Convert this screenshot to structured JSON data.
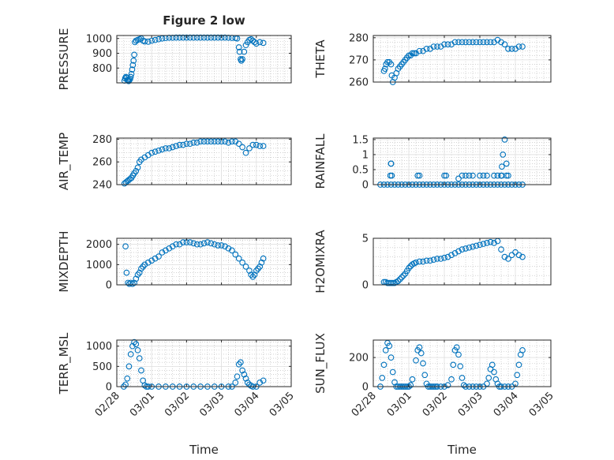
{
  "figure": {
    "title": "Figure 2 low"
  },
  "colors": {
    "marker": "#0072BD",
    "axis": "#262626",
    "grid": "#b8b8b8"
  },
  "x_axis": {
    "label": "Time",
    "ticks": [
      0,
      1,
      2,
      3,
      4,
      5
    ],
    "tick_labels": [
      "02/28",
      "03/01",
      "03/02",
      "03/03",
      "03/04",
      "03/05"
    ],
    "minor_ticks": 4
  },
  "chart_data": [
    {
      "type": "scatter",
      "title": "Figure 2 low",
      "ylabel": "PRESSURE",
      "ylim": [
        700,
        1020
      ],
      "yticks": [
        800,
        900,
        1000
      ],
      "yminor": 4,
      "grid": "on",
      "marker": "circle",
      "x": [
        0.22,
        0.24,
        0.26,
        0.28,
        0.3,
        0.32,
        0.34,
        0.36,
        0.38,
        0.4,
        0.42,
        0.44,
        0.46,
        0.48,
        0.5,
        0.52,
        0.55,
        0.6,
        0.65,
        0.7,
        0.75,
        0.8,
        0.9,
        1.0,
        1.1,
        1.2,
        1.3,
        1.4,
        1.5,
        1.6,
        1.7,
        1.8,
        1.9,
        2.0,
        2.1,
        2.2,
        2.3,
        2.4,
        2.5,
        2.6,
        2.7,
        2.8,
        2.9,
        3.0,
        3.1,
        3.2,
        3.3,
        3.4,
        3.45,
        3.5,
        3.52,
        3.55,
        3.57,
        3.6,
        3.65,
        3.7,
        3.75,
        3.8,
        3.85,
        3.9,
        3.95,
        4.0,
        4.1,
        4.2
      ],
      "y": [
        715,
        730,
        740,
        735,
        720,
        715,
        712,
        718,
        725,
        740,
        760,
        790,
        820,
        850,
        890,
        975,
        985,
        990,
        995,
        1000,
        985,
        980,
        978,
        985,
        990,
        995,
        1000,
        1003,
        1005,
        1005,
        1006,
        1006,
        1006,
        1006,
        1006,
        1006,
        1006,
        1006,
        1006,
        1006,
        1006,
        1006,
        1006,
        1006,
        1006,
        1005,
        1004,
        1003,
        1000,
        940,
        910,
        860,
        850,
        860,
        910,
        955,
        975,
        990,
        995,
        985,
        975,
        965,
        975,
        970
      ]
    },
    {
      "type": "scatter",
      "ylabel": "THETA",
      "ylim": [
        260,
        281
      ],
      "yticks": [
        260,
        270,
        280
      ],
      "yminor": 4,
      "grid": "on",
      "marker": "circle",
      "x": [
        0.3,
        0.33,
        0.36,
        0.4,
        0.45,
        0.5,
        0.52,
        0.55,
        0.6,
        0.65,
        0.7,
        0.75,
        0.8,
        0.85,
        0.9,
        0.95,
        1.0,
        1.05,
        1.1,
        1.15,
        1.2,
        1.3,
        1.4,
        1.5,
        1.6,
        1.7,
        1.8,
        1.9,
        2.0,
        2.1,
        2.2,
        2.3,
        2.4,
        2.5,
        2.6,
        2.7,
        2.8,
        2.9,
        3.0,
        3.1,
        3.2,
        3.3,
        3.4,
        3.5,
        3.6,
        3.7,
        3.8,
        3.9,
        4.0,
        4.1,
        4.2
      ],
      "y": [
        265,
        266,
        268,
        269,
        269,
        268,
        263,
        260,
        262,
        264,
        266,
        267,
        268,
        269,
        270,
        271,
        272,
        272,
        273,
        273,
        273,
        274,
        274,
        275,
        275,
        276,
        276,
        276,
        277,
        277,
        277,
        278,
        278,
        278,
        278,
        278,
        278,
        278,
        278,
        278,
        278,
        278,
        278,
        279,
        278,
        277,
        275,
        275,
        275,
        276,
        276
      ]
    },
    {
      "type": "scatter",
      "ylabel": "AIR_TEMP",
      "ylim": [
        240,
        281
      ],
      "yticks": [
        240,
        260,
        280
      ],
      "yminor": 4,
      "grid": "on",
      "marker": "circle",
      "x": [
        0.22,
        0.26,
        0.3,
        0.34,
        0.38,
        0.42,
        0.46,
        0.5,
        0.55,
        0.6,
        0.65,
        0.7,
        0.8,
        0.9,
        1.0,
        1.1,
        1.2,
        1.3,
        1.4,
        1.5,
        1.6,
        1.7,
        1.8,
        1.9,
        2.0,
        2.1,
        2.2,
        2.3,
        2.4,
        2.5,
        2.6,
        2.7,
        2.8,
        2.9,
        3.0,
        3.1,
        3.2,
        3.3,
        3.4,
        3.5,
        3.6,
        3.7,
        3.8,
        3.9,
        4.0,
        4.1,
        4.2
      ],
      "y": [
        241,
        242,
        243,
        244,
        245,
        246,
        248,
        250,
        252,
        255,
        260,
        262,
        264,
        266,
        268,
        269,
        270,
        271,
        272,
        272,
        273,
        274,
        275,
        275,
        276,
        276,
        277,
        277,
        278,
        278,
        278,
        278,
        278,
        278,
        278,
        278,
        277,
        278,
        278,
        276,
        273,
        268,
        272,
        275,
        275,
        274,
        274
      ]
    },
    {
      "type": "scatter",
      "ylabel": "RAINFALL",
      "ylim": [
        0,
        1.55
      ],
      "yticks": [
        0,
        0.5,
        1,
        1.5
      ],
      "yminor": 4,
      "grid": "on",
      "marker": "circle",
      "x": [
        0.2,
        0.3,
        0.4,
        0.5,
        0.6,
        0.7,
        0.8,
        0.9,
        1.0,
        1.1,
        1.2,
        1.3,
        1.4,
        1.5,
        1.6,
        1.7,
        1.8,
        1.9,
        2.0,
        2.1,
        2.2,
        2.3,
        2.4,
        2.5,
        2.6,
        2.7,
        2.8,
        2.9,
        3.0,
        3.1,
        3.2,
        3.3,
        3.4,
        3.5,
        3.6,
        3.7,
        3.8,
        3.9,
        4.0,
        4.1,
        4.2,
        0.48,
        0.52,
        0.5,
        0.5,
        1.25,
        1.3,
        2.0,
        2.05,
        2.4,
        2.5,
        2.6,
        2.7,
        2.8,
        3.0,
        3.1,
        3.2,
        3.4,
        3.5,
        3.6,
        3.62,
        3.65,
        3.7,
        3.75,
        3.8,
        3.62,
        3.75
      ],
      "y": [
        0,
        0,
        0,
        0,
        0,
        0,
        0,
        0,
        0,
        0,
        0,
        0,
        0,
        0,
        0,
        0,
        0,
        0,
        0,
        0,
        0,
        0,
        0,
        0,
        0,
        0,
        0,
        0,
        0,
        0,
        0,
        0,
        0,
        0,
        0,
        0,
        0,
        0,
        0,
        0,
        0,
        0.3,
        0.3,
        0.7,
        0.7,
        0.3,
        0.3,
        0.3,
        0.3,
        0.2,
        0.3,
        0.3,
        0.3,
        0.3,
        0.3,
        0.3,
        0.3,
        0.3,
        0.3,
        0.3,
        0.6,
        1.0,
        1.5,
        0.7,
        0.3,
        0.3,
        0.3
      ]
    },
    {
      "type": "scatter",
      "ylabel": "MIXDEPTH",
      "ylim": [
        0,
        2300
      ],
      "yticks": [
        0,
        1000,
        2000
      ],
      "yminor": 4,
      "grid": "on",
      "marker": "circle",
      "x": [
        0.25,
        0.28,
        0.32,
        0.36,
        0.4,
        0.45,
        0.5,
        0.55,
        0.6,
        0.65,
        0.7,
        0.75,
        0.8,
        0.9,
        1.0,
        1.1,
        1.2,
        1.3,
        1.4,
        1.5,
        1.6,
        1.7,
        1.8,
        1.9,
        2.0,
        2.1,
        2.2,
        2.3,
        2.4,
        2.5,
        2.6,
        2.7,
        2.8,
        2.9,
        3.0,
        3.1,
        3.2,
        3.3,
        3.4,
        3.5,
        3.6,
        3.7,
        3.8,
        3.85,
        3.9,
        3.95,
        4.0,
        4.05,
        4.1,
        4.15,
        4.2
      ],
      "y": [
        1900,
        600,
        100,
        50,
        100,
        50,
        100,
        300,
        500,
        600,
        800,
        900,
        1000,
        1100,
        1200,
        1300,
        1400,
        1600,
        1700,
        1800,
        1900,
        2000,
        2000,
        2100,
        2100,
        2100,
        2050,
        2000,
        2000,
        2050,
        2100,
        2050,
        2000,
        1950,
        1950,
        1900,
        1800,
        1700,
        1500,
        1300,
        1100,
        900,
        700,
        500,
        400,
        500,
        700,
        800,
        900,
        1100,
        1300
      ]
    },
    {
      "type": "scatter",
      "ylabel": "H2OMIXRA",
      "ylim": [
        0,
        5
      ],
      "yticks": [
        0,
        5
      ],
      "yminor": 4,
      "grid": "on",
      "marker": "circle",
      "x": [
        0.3,
        0.35,
        0.4,
        0.45,
        0.5,
        0.55,
        0.6,
        0.65,
        0.7,
        0.75,
        0.8,
        0.85,
        0.9,
        0.95,
        1.0,
        1.05,
        1.1,
        1.15,
        1.2,
        1.3,
        1.4,
        1.5,
        1.6,
        1.7,
        1.8,
        1.9,
        2.0,
        2.1,
        2.2,
        2.3,
        2.4,
        2.5,
        2.6,
        2.7,
        2.8,
        2.9,
        3.0,
        3.1,
        3.2,
        3.3,
        3.4,
        3.5,
        3.6,
        3.7,
        3.8,
        3.9,
        4.0,
        4.1,
        4.2
      ],
      "y": [
        0.3,
        0.3,
        0.2,
        0.2,
        0.2,
        0.2,
        0.2,
        0.3,
        0.4,
        0.6,
        0.8,
        1.0,
        1.2,
        1.5,
        1.8,
        2.0,
        2.2,
        2.3,
        2.4,
        2.5,
        2.5,
        2.6,
        2.6,
        2.7,
        2.8,
        2.8,
        2.9,
        3.0,
        3.2,
        3.4,
        3.6,
        3.8,
        3.9,
        4.0,
        4.1,
        4.2,
        4.3,
        4.4,
        4.5,
        4.6,
        4.5,
        4.7,
        3.8,
        3.0,
        2.8,
        3.2,
        3.5,
        3.2,
        3.0
      ]
    },
    {
      "type": "scatter",
      "ylabel": "TERR_MSL",
      "ylim": [
        0,
        1150
      ],
      "yticks": [
        0,
        500,
        1000
      ],
      "yminor": 4,
      "grid": "on",
      "marker": "circle",
      "x": [
        0.2,
        0.25,
        0.3,
        0.35,
        0.4,
        0.45,
        0.5,
        0.55,
        0.6,
        0.65,
        0.7,
        0.75,
        0.8,
        0.85,
        0.9,
        1.0,
        1.2,
        1.4,
        1.6,
        1.8,
        2.0,
        2.2,
        2.4,
        2.6,
        2.8,
        3.0,
        3.2,
        3.3,
        3.4,
        3.45,
        3.5,
        3.55,
        3.6,
        3.65,
        3.7,
        3.75,
        3.8,
        3.85,
        3.9,
        4.0,
        4.1,
        4.2
      ],
      "y": [
        0,
        50,
        200,
        500,
        800,
        1000,
        1100,
        1050,
        900,
        700,
        400,
        150,
        30,
        0,
        0,
        0,
        0,
        0,
        0,
        0,
        0,
        0,
        0,
        0,
        0,
        0,
        0,
        0,
        100,
        250,
        550,
        600,
        400,
        300,
        200,
        100,
        50,
        20,
        0,
        0,
        100,
        150
      ]
    },
    {
      "type": "scatter",
      "ylabel": "SUN_FLUX",
      "ylim": [
        0,
        320
      ],
      "yticks": [
        0,
        200
      ],
      "yminor": 4,
      "grid": "on",
      "marker": "circle",
      "x": [
        0.2,
        0.25,
        0.3,
        0.35,
        0.4,
        0.45,
        0.5,
        0.55,
        0.6,
        0.65,
        0.7,
        0.75,
        0.8,
        0.85,
        0.9,
        0.95,
        1.0,
        1.05,
        1.1,
        1.2,
        1.25,
        1.3,
        1.35,
        1.4,
        1.45,
        1.5,
        1.55,
        1.6,
        1.65,
        1.7,
        1.75,
        1.8,
        1.9,
        2.0,
        2.1,
        2.2,
        2.25,
        2.3,
        2.35,
        2.4,
        2.45,
        2.5,
        2.55,
        2.6,
        2.7,
        2.8,
        2.9,
        3.0,
        3.1,
        3.2,
        3.25,
        3.3,
        3.35,
        3.4,
        3.45,
        3.5,
        3.55,
        3.6,
        3.7,
        3.8,
        3.9,
        4.0,
        4.05,
        4.1,
        4.15,
        4.2
      ],
      "y": [
        0,
        60,
        150,
        250,
        300,
        280,
        200,
        100,
        30,
        0,
        0,
        0,
        0,
        0,
        0,
        0,
        0,
        10,
        50,
        180,
        250,
        270,
        230,
        160,
        80,
        20,
        0,
        0,
        0,
        0,
        0,
        0,
        0,
        0,
        10,
        50,
        150,
        250,
        270,
        220,
        140,
        60,
        10,
        0,
        0,
        0,
        0,
        0,
        0,
        20,
        60,
        120,
        150,
        100,
        50,
        20,
        0,
        0,
        0,
        0,
        0,
        20,
        80,
        150,
        220,
        250
      ]
    }
  ]
}
